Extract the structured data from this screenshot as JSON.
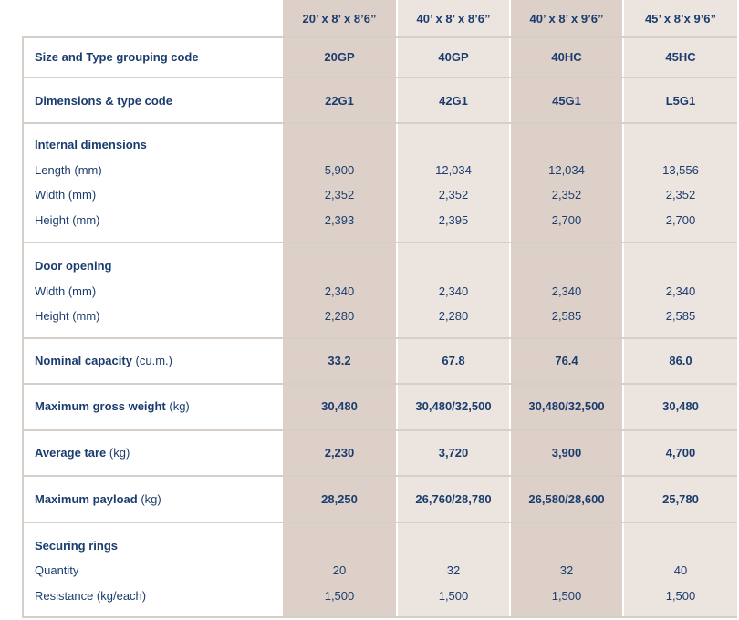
{
  "headers": [
    "20’ x 8’ x 8’6”",
    "40’ x 8’ x 8’6”",
    "40’ x 8’ x 9’6”",
    "45’ x 8’x 9’6”"
  ],
  "size_type_grouping": {
    "label": "Size and Type grouping code",
    "values": [
      "20GP",
      "40GP",
      "40HC",
      "45HC"
    ]
  },
  "dimensions_type_code": {
    "label": "Dimensions & type code",
    "values": [
      "22G1",
      "42G1",
      "45G1",
      "L5G1"
    ]
  },
  "internal_dimensions": {
    "title": "Internal dimensions",
    "rows": [
      {
        "label": "Length (mm)",
        "values": [
          "5,900",
          "12,034",
          "12,034",
          "13,556"
        ]
      },
      {
        "label": "Width (mm)",
        "values": [
          "2,352",
          "2,352",
          "2,352",
          "2,352"
        ]
      },
      {
        "label": "Height (mm)",
        "values": [
          "2,393",
          "2,395",
          "2,700",
          "2,700"
        ]
      }
    ]
  },
  "door_opening": {
    "title": "Door opening",
    "rows": [
      {
        "label": "Width (mm)",
        "values": [
          "2,340",
          "2,340",
          "2,340",
          "2,340"
        ]
      },
      {
        "label": "Height (mm)",
        "values": [
          "2,280",
          "2,280",
          "2,585",
          "2,585"
        ]
      }
    ]
  },
  "nominal_capacity": {
    "label": "Nominal capacity",
    "unit": " (cu.m.)",
    "values": [
      "33.2",
      "67.8",
      "76.4",
      "86.0"
    ]
  },
  "max_gross_weight": {
    "label": "Maximum gross weight",
    "unit": " (kg)",
    "values": [
      "30,480",
      "30,480/32,500",
      "30,480/32,500",
      "30,480"
    ]
  },
  "average_tare": {
    "label": "Average tare",
    "unit": " (kg)",
    "values": [
      "2,230",
      "3,720",
      "3,900",
      "4,700"
    ]
  },
  "max_payload": {
    "label": "Maximum payload",
    "unit": " (kg)",
    "values": [
      "28,250",
      "26,760/28,780",
      "26,580/28,600",
      "25,780"
    ]
  },
  "securing_rings": {
    "title": "Securing rings",
    "rows": [
      {
        "label": "Quantity",
        "values": [
          "20",
          "32",
          "32",
          "40"
        ]
      },
      {
        "label": "Resistance (kg/each)",
        "values": [
          "1,500",
          "1,500",
          "1,500",
          "1,500"
        ]
      }
    ]
  }
}
